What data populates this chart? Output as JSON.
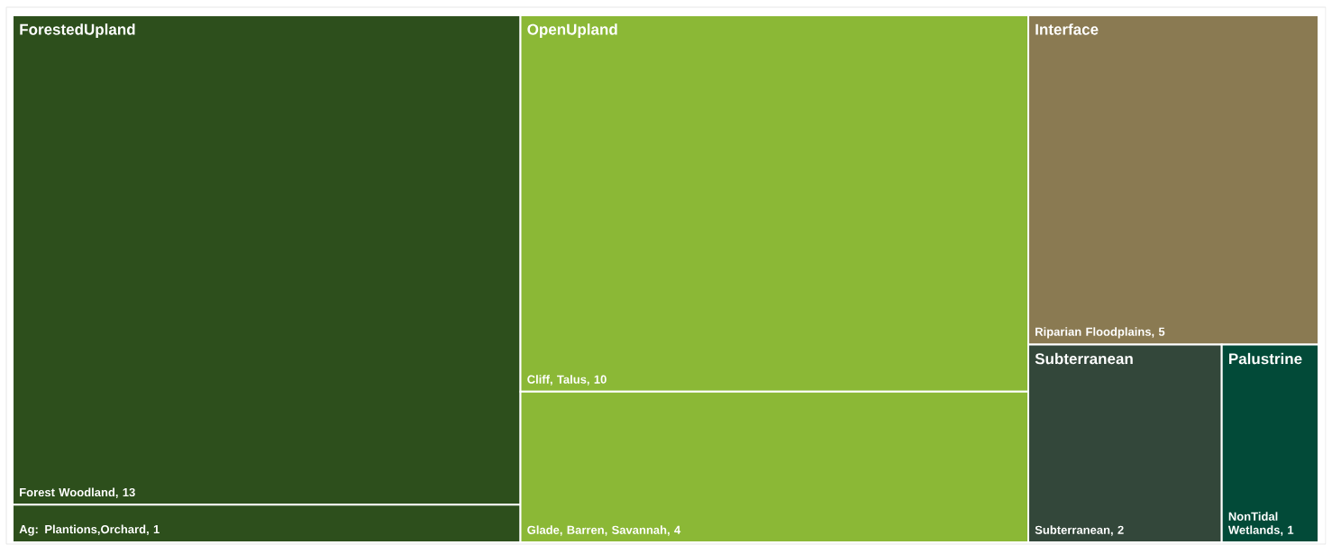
{
  "chart_data": {
    "type": "other",
    "categories": [
      "Forest Woodland",
      "Ag: Plantions,Orchard",
      "Cliff, Talus",
      "Glade, Barren, Savannah",
      "Riparian Floodplains",
      "Subterranean",
      "NonTidal Wetlands"
    ],
    "series": [
      {
        "name": "ForestedUpland",
        "color": "#2d4f1c",
        "values": [
          13,
          1,
          null,
          null,
          null,
          null,
          null
        ],
        "value_labels": [
          ", 13",
          ", 1",
          null,
          null,
          null,
          null,
          null
        ]
      },
      {
        "name": "OpenUpland",
        "color": "#8bb836",
        "values": [
          null,
          null,
          10,
          4,
          null,
          null,
          null
        ],
        "value_labels": [
          null,
          null,
          ", 10",
          ", 4",
          null,
          null,
          null
        ]
      },
      {
        "name": "Interface",
        "color": "#8a7a52",
        "values": [
          null,
          null,
          null,
          null,
          5,
          null,
          null
        ],
        "value_labels": [
          null,
          null,
          null,
          null,
          ", 5",
          null,
          null
        ]
      },
      {
        "name": "Subterranean",
        "color": "#33473a",
        "values": [
          null,
          null,
          null,
          null,
          null,
          2,
          null
        ],
        "value_labels": [
          null,
          null,
          null,
          null,
          null,
          ", 2",
          null
        ]
      },
      {
        "name": "Palustrine",
        "color": "#024a38",
        "values": [
          null,
          null,
          null,
          null,
          null,
          null,
          1
        ],
        "value_labels": [
          null,
          null,
          null,
          null,
          null,
          null,
          ", 1"
        ]
      }
    ]
  }
}
